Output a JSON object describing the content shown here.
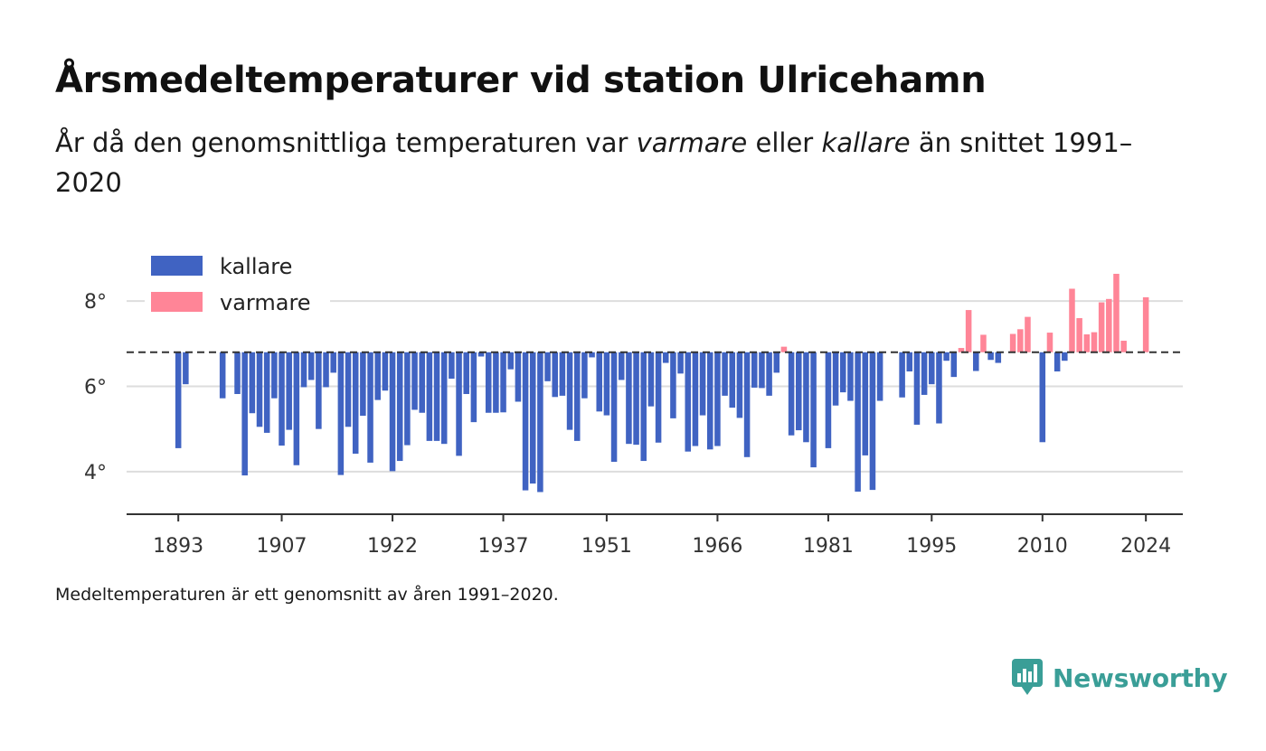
{
  "header": {
    "title": "Årsmedeltemperaturer vid station Ulricehamn",
    "subtitle_before": "År då den genomsnittliga temperaturen var ",
    "subtitle_warm": "varmare",
    "subtitle_middle": " eller ",
    "subtitle_cold": "kallare",
    "subtitle_after": " än snittet 1991–2020"
  },
  "footnote": "Medeltemperaturen är ett genomsnitt av åren 1991–2020.",
  "brand": {
    "name": "Newsworthy",
    "icon": "newsworthy-logo-icon",
    "color": "#3a9e97"
  },
  "chart_data": {
    "type": "bar",
    "baseline": 6.8,
    "ylim": [
      3.0,
      9.0
    ],
    "xlim": [
      1886,
      2029
    ],
    "y_ticks": [
      {
        "value": 4,
        "label": "4°"
      },
      {
        "value": 6,
        "label": "6°"
      },
      {
        "value": 8,
        "label": "8°"
      }
    ],
    "x_ticks": [
      {
        "value": 1893,
        "label": "1893"
      },
      {
        "value": 1907,
        "label": "1907"
      },
      {
        "value": 1922,
        "label": "1922"
      },
      {
        "value": 1937,
        "label": "1937"
      },
      {
        "value": 1951,
        "label": "1951"
      },
      {
        "value": 1966,
        "label": "1966"
      },
      {
        "value": 1981,
        "label": "1981"
      },
      {
        "value": 1995,
        "label": "1995"
      },
      {
        "value": 2010,
        "label": "2010"
      },
      {
        "value": 2024,
        "label": "2024"
      }
    ],
    "grid": true,
    "legend_position": "top-left",
    "colors": {
      "kallare": "#4063c2",
      "varmare": "#ff8597",
      "baseline": "#333333",
      "grid": "#dddddd",
      "axis": "#333333"
    },
    "series": [
      {
        "name": "kallare",
        "color": "#4063c2"
      },
      {
        "name": "varmare",
        "color": "#ff8597"
      }
    ],
    "points": [
      [
        1893,
        4.55
      ],
      [
        1894,
        6.05
      ],
      [
        1899,
        5.72
      ],
      [
        1901,
        5.82
      ],
      [
        1902,
        3.91
      ],
      [
        1903,
        5.37
      ],
      [
        1904,
        5.05
      ],
      [
        1905,
        4.91
      ],
      [
        1906,
        5.72
      ],
      [
        1907,
        4.61
      ],
      [
        1908,
        4.98
      ],
      [
        1909,
        4.15
      ],
      [
        1910,
        5.98
      ],
      [
        1911,
        6.15
      ],
      [
        1912,
        5.0
      ],
      [
        1913,
        5.98
      ],
      [
        1914,
        6.32
      ],
      [
        1915,
        3.92
      ],
      [
        1916,
        5.05
      ],
      [
        1917,
        4.42
      ],
      [
        1918,
        5.31
      ],
      [
        1919,
        4.21
      ],
      [
        1920,
        5.68
      ],
      [
        1921,
        5.9
      ],
      [
        1922,
        4.01
      ],
      [
        1923,
        4.25
      ],
      [
        1924,
        4.62
      ],
      [
        1925,
        5.45
      ],
      [
        1926,
        5.38
      ],
      [
        1927,
        4.72
      ],
      [
        1928,
        4.72
      ],
      [
        1929,
        4.65
      ],
      [
        1930,
        6.18
      ],
      [
        1931,
        4.37
      ],
      [
        1932,
        5.82
      ],
      [
        1933,
        5.16
      ],
      [
        1934,
        6.7
      ],
      [
        1935,
        5.38
      ],
      [
        1936,
        5.38
      ],
      [
        1937,
        5.39
      ],
      [
        1938,
        6.4
      ],
      [
        1939,
        5.64
      ],
      [
        1940,
        3.56
      ],
      [
        1941,
        3.72
      ],
      [
        1942,
        3.52
      ],
      [
        1943,
        6.12
      ],
      [
        1944,
        5.75
      ],
      [
        1945,
        5.78
      ],
      [
        1946,
        4.98
      ],
      [
        1947,
        4.72
      ],
      [
        1948,
        5.72
      ],
      [
        1949,
        6.68
      ],
      [
        1950,
        5.41
      ],
      [
        1951,
        5.32
      ],
      [
        1952,
        4.23
      ],
      [
        1953,
        6.15
      ],
      [
        1954,
        4.65
      ],
      [
        1955,
        4.63
      ],
      [
        1956,
        4.25
      ],
      [
        1957,
        5.53
      ],
      [
        1958,
        4.68
      ],
      [
        1959,
        6.55
      ],
      [
        1960,
        5.25
      ],
      [
        1961,
        6.3
      ],
      [
        1962,
        4.47
      ],
      [
        1963,
        4.6
      ],
      [
        1964,
        5.32
      ],
      [
        1965,
        4.52
      ],
      [
        1966,
        4.6
      ],
      [
        1967,
        5.78
      ],
      [
        1968,
        5.5
      ],
      [
        1969,
        5.26
      ],
      [
        1970,
        4.34
      ],
      [
        1971,
        5.97
      ],
      [
        1972,
        5.96
      ],
      [
        1973,
        5.78
      ],
      [
        1974,
        6.32
      ],
      [
        1975,
        6.93
      ],
      [
        1976,
        4.85
      ],
      [
        1977,
        4.97
      ],
      [
        1978,
        4.69
      ],
      [
        1979,
        4.1
      ],
      [
        1981,
        4.55
      ],
      [
        1982,
        5.55
      ],
      [
        1983,
        5.86
      ],
      [
        1984,
        5.66
      ],
      [
        1985,
        3.53
      ],
      [
        1986,
        4.38
      ],
      [
        1987,
        3.57
      ],
      [
        1988,
        5.66
      ],
      [
        1991,
        5.74
      ],
      [
        1992,
        6.35
      ],
      [
        1993,
        5.1
      ],
      [
        1994,
        5.8
      ],
      [
        1995,
        6.05
      ],
      [
        1996,
        5.13
      ],
      [
        1997,
        6.6
      ],
      [
        1998,
        6.22
      ],
      [
        1999,
        6.9
      ],
      [
        2000,
        7.79
      ],
      [
        2001,
        6.36
      ],
      [
        2002,
        7.21
      ],
      [
        2003,
        6.62
      ],
      [
        2004,
        6.55
      ],
      [
        2006,
        7.23
      ],
      [
        2007,
        7.34
      ],
      [
        2008,
        7.63
      ],
      [
        2010,
        4.69
      ],
      [
        2011,
        7.26
      ],
      [
        2012,
        6.35
      ],
      [
        2013,
        6.6
      ],
      [
        2014,
        8.29
      ],
      [
        2015,
        7.6
      ],
      [
        2016,
        7.22
      ],
      [
        2017,
        7.27
      ],
      [
        2018,
        7.97
      ],
      [
        2019,
        8.05
      ],
      [
        2020,
        8.64
      ],
      [
        2021,
        7.07
      ],
      [
        2024,
        8.09
      ]
    ]
  }
}
